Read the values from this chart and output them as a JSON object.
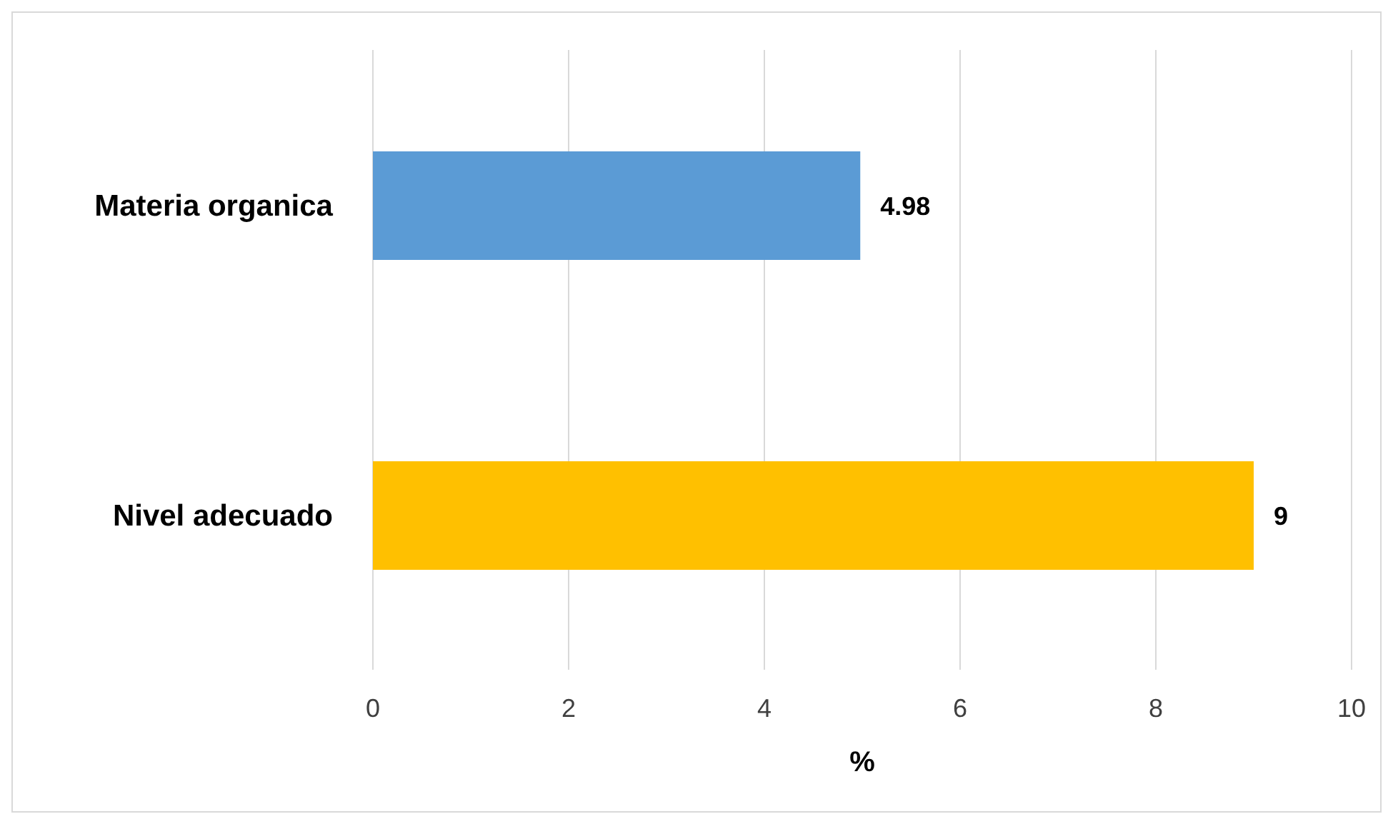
{
  "chart_data": {
    "type": "bar",
    "orientation": "horizontal",
    "categories": [
      "Materia organica",
      "Nivel adecuado"
    ],
    "values": [
      4.98,
      9
    ],
    "colors": [
      "#5b9bd5",
      "#ffc000"
    ],
    "xlim": [
      0,
      10
    ],
    "xticks": [
      0,
      2,
      4,
      6,
      8,
      10
    ],
    "xlabel": "%",
    "grid": "x",
    "data_labels": true
  }
}
